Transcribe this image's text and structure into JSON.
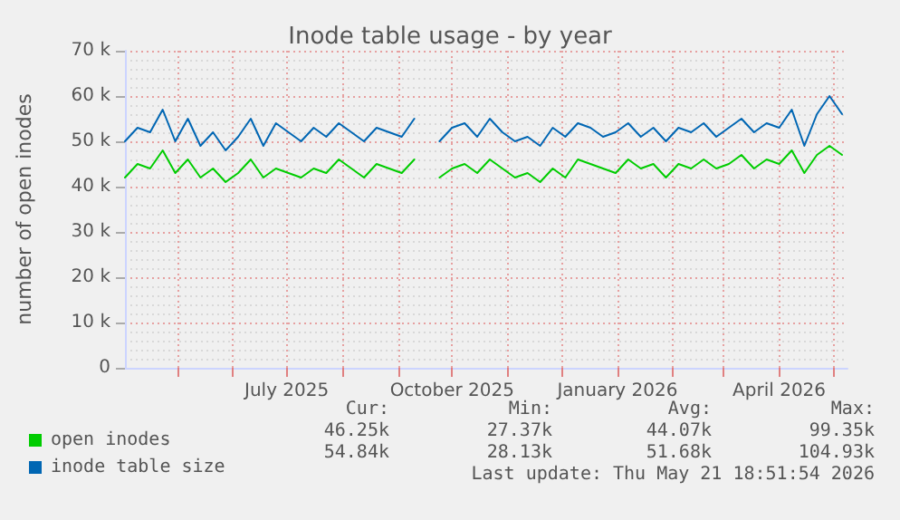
{
  "chart_data": {
    "type": "line",
    "title": "Inode table usage - by year",
    "ylabel": "number of open inodes",
    "x": [
      "2025-04-02",
      "2025-04-09",
      "2025-04-16",
      "2025-04-23",
      "2025-04-30",
      "2025-05-07",
      "2025-05-14",
      "2025-05-21",
      "2025-05-28",
      "2025-06-04",
      "2025-06-11",
      "2025-06-18",
      "2025-06-25",
      "2025-07-02",
      "2025-07-09",
      "2025-07-16",
      "2025-07-23",
      "2025-07-30",
      "2025-08-06",
      "2025-08-13",
      "2025-08-20",
      "2025-08-27",
      "2025-09-03",
      "2025-09-10",
      "2025-09-17",
      "2025-09-24",
      "2025-10-01",
      "2025-10-08",
      "2025-10-15",
      "2025-10-22",
      "2025-10-29",
      "2025-11-05",
      "2025-11-12",
      "2025-11-19",
      "2025-11-26",
      "2025-12-03",
      "2025-12-10",
      "2025-12-17",
      "2025-12-24",
      "2025-12-31",
      "2026-01-07",
      "2026-01-14",
      "2026-01-21",
      "2026-01-28",
      "2026-02-04",
      "2026-02-11",
      "2026-02-18",
      "2026-02-25",
      "2026-03-04",
      "2026-03-11",
      "2026-03-18",
      "2026-03-25",
      "2026-04-01",
      "2026-04-08",
      "2026-04-15",
      "2026-04-22",
      "2026-04-29",
      "2026-05-06"
    ],
    "series": [
      {
        "name": "open inodes",
        "color": "#00cc00",
        "values": [
          42000,
          45000,
          44000,
          48000,
          43000,
          46000,
          42000,
          44000,
          41000,
          43000,
          46000,
          42000,
          44000,
          43000,
          42000,
          44000,
          43000,
          46000,
          44000,
          42000,
          45000,
          44000,
          43000,
          46000,
          null,
          42000,
          44000,
          45000,
          43000,
          46000,
          44000,
          42000,
          43000,
          41000,
          44000,
          42000,
          46000,
          45000,
          44000,
          43000,
          46000,
          44000,
          45000,
          42000,
          45000,
          44000,
          46000,
          44000,
          45000,
          47000,
          44000,
          46000,
          45000,
          48000,
          43000,
          47000,
          49000,
          47000
        ]
      },
      {
        "name": "inode table size",
        "color": "#0066b3",
        "values": [
          50000,
          53000,
          52000,
          57000,
          50000,
          55000,
          49000,
          52000,
          48000,
          51000,
          55000,
          49000,
          54000,
          52000,
          50000,
          53000,
          51000,
          54000,
          52000,
          50000,
          53000,
          52000,
          51000,
          55000,
          null,
          50000,
          53000,
          54000,
          51000,
          55000,
          52000,
          50000,
          51000,
          49000,
          53000,
          51000,
          54000,
          53000,
          51000,
          52000,
          54000,
          51000,
          53000,
          50000,
          53000,
          52000,
          54000,
          51000,
          53000,
          55000,
          52000,
          54000,
          53000,
          57000,
          49000,
          56000,
          60000,
          56000
        ]
      }
    ],
    "xlim": [
      "2025-04-02",
      "2026-05-09"
    ],
    "xticks": [
      {
        "value": "2025-05-01",
        "label": null
      },
      {
        "value": "2025-06-01",
        "label": null
      },
      {
        "value": "2025-07-01",
        "label": "July 2025"
      },
      {
        "value": "2025-08-01",
        "label": null
      },
      {
        "value": "2025-09-01",
        "label": null
      },
      {
        "value": "2025-10-01",
        "label": "October 2025"
      },
      {
        "value": "2025-11-01",
        "label": null
      },
      {
        "value": "2025-12-01",
        "label": null
      },
      {
        "value": "2026-01-01",
        "label": "January 2026"
      },
      {
        "value": "2026-02-01",
        "label": null
      },
      {
        "value": "2026-03-01",
        "label": null
      },
      {
        "value": "2026-04-01",
        "label": "April 2026"
      },
      {
        "value": "2026-05-01",
        "label": null
      }
    ],
    "ylim": [
      0,
      70000
    ],
    "yticks": [
      0,
      {
        "value": 10000,
        "label": "10 k"
      },
      {
        "value": 20000,
        "label": "20 k"
      },
      {
        "value": 30000,
        "label": "30 k"
      },
      {
        "value": 40000,
        "label": "40 k"
      },
      {
        "value": 50000,
        "label": "50 k"
      },
      {
        "value": 60000,
        "label": "60 k"
      },
      {
        "value": 70000,
        "label": "70 k"
      }
    ],
    "grid": true,
    "legend": "bottom left",
    "marker": "none",
    "line_style": "solid",
    "annotations": [
      "Cur:",
      "Min:",
      "Avg:",
      "Max:",
      "46.25k",
      "27.37k",
      "44.07k",
      "99.35k",
      "54.84k",
      "28.13k",
      "51.68k",
      "104.93k",
      "Last update: Thu May 21 18:51:54 2026"
    ]
  }
}
